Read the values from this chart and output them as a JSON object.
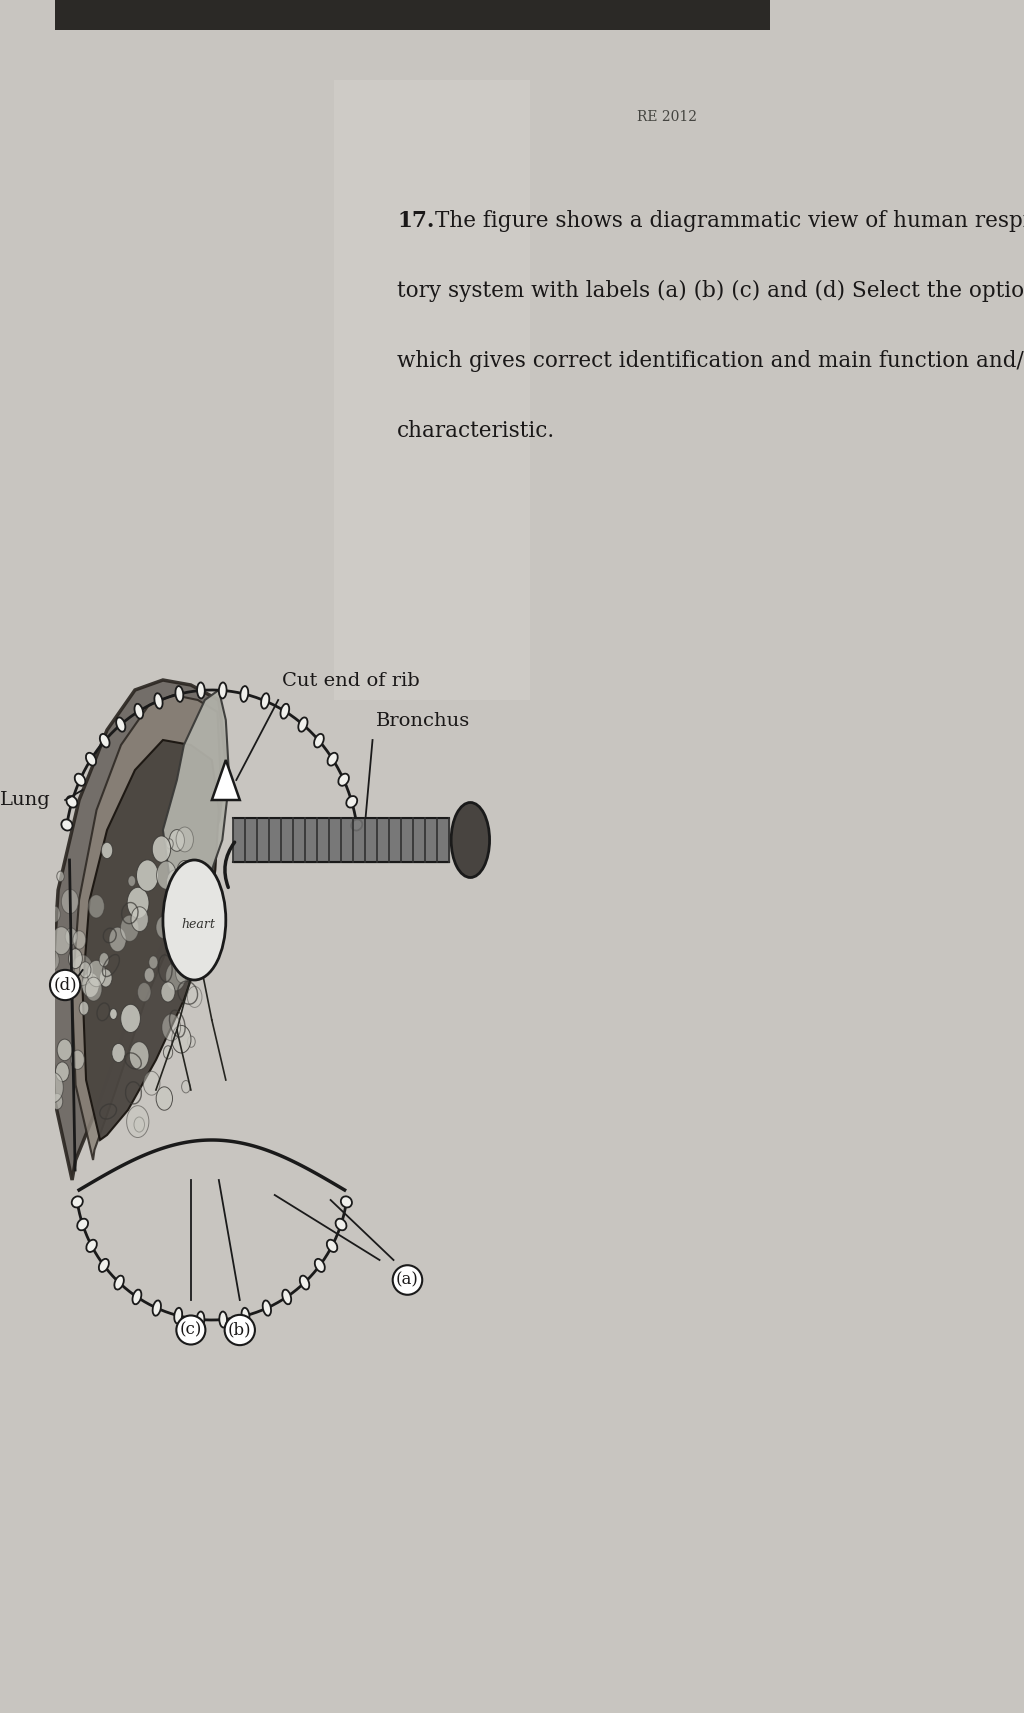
{
  "page_bg": "#c8c5c0",
  "page_bg2": "#ccc9c4",
  "shadow_color": "#555550",
  "question_number": "17.",
  "question_text_line1": "The figure shows a diagrammatic view of human respira-",
  "question_text_line2": "tory system with labels (a) (b) (c) and (d) Select the option",
  "question_text_line3": "which gives correct identification and main function and/or",
  "question_text_line4": "characteristic.",
  "label_bronchus": "Bronchus",
  "label_cut_end_of_rib": "Cut end of rib",
  "label_lung": "Lung",
  "label_heart": "heart",
  "label_a": "(a)",
  "label_b": "(b)",
  "label_c": "(c)",
  "label_d": "(d)",
  "source_text": "RE 2012",
  "text_color": "#1a1818",
  "diagram_line_color": "#1a1a1a",
  "lung_fill_dark": "#8a8a8a",
  "lung_fill_light": "#b0b0aa",
  "upper_lobe_fill": "#b8b8b0",
  "heart_fill": "#e8e8e4",
  "bronchus_fill": "#686868",
  "rib_bead_fill": "#f0f0ec"
}
